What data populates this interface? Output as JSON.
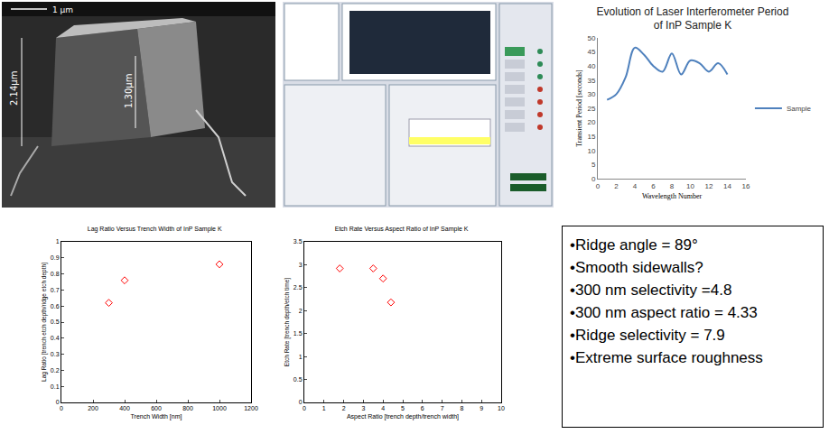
{
  "chart_data": [
    {
      "type": "line",
      "title": "Evolution of Laser Interferometer Period of InP Sample K",
      "x_label": "Wavelength Number",
      "y_label": "Transient Period [seconds]",
      "x": [
        1,
        2,
        3,
        4,
        5,
        6,
        7,
        8,
        9,
        10,
        11,
        12,
        13,
        14
      ],
      "series": [
        {
          "name": "Sample",
          "color": "#4f81bd",
          "values": [
            28,
            30,
            36,
            46.5,
            44,
            40,
            38,
            44.5,
            37,
            42,
            41,
            38,
            41,
            37
          ]
        }
      ],
      "xlim": [
        0,
        16
      ],
      "xticks": [
        0,
        2,
        4,
        6,
        8,
        10,
        12,
        14,
        16
      ],
      "ylim": [
        0,
        50
      ],
      "yticks": [
        0,
        5,
        10,
        15,
        20,
        25,
        30,
        35,
        40,
        45,
        50
      ],
      "grid": false,
      "legend": "right",
      "line_style": "smooth"
    },
    {
      "type": "scatter",
      "title": "Lag Ratio Versus Trench Width of InP Sample K",
      "x_label": "Trench Width [nm]",
      "y_label": "Lag Ratio [trench etch depth/ridge etch depth]",
      "x": [
        300,
        400,
        1000
      ],
      "values": [
        0.62,
        0.76,
        0.86
      ],
      "color": "#ff0000",
      "marker": "diamond-open",
      "xlim": [
        0,
        1200
      ],
      "xticks": [
        0,
        200,
        400,
        600,
        800,
        1000,
        1200
      ],
      "ylim": [
        0,
        1
      ],
      "yticks": [
        0,
        0.1,
        0.2,
        0.3,
        0.4,
        0.5,
        0.6,
        0.7,
        0.8,
        0.9,
        1
      ],
      "grid": false
    },
    {
      "type": "scatter",
      "title": "Etch Rate Versus Aspect Ratio of InP Sample K",
      "x_label": "Aspect Ratio [trench depth/trench width]",
      "y_label": "Etch Rate [trench depth/etch time]",
      "x": [
        1.8,
        3.5,
        4,
        4.4
      ],
      "values": [
        2.92,
        2.92,
        2.7,
        2.18
      ],
      "color": "#ff0000",
      "marker": "diamond-open",
      "xlim": [
        0,
        10
      ],
      "xticks": [
        0,
        1,
        2,
        3,
        4,
        5,
        6,
        7,
        8,
        9,
        10
      ],
      "ylim": [
        0,
        3.5
      ],
      "yticks": [
        0,
        0.5,
        1,
        1.5,
        2,
        2.5,
        3,
        3.5
      ],
      "grid": false
    }
  ],
  "sem_image": {
    "labels": [
      "2.14µm",
      "1.30µm",
      "1 µm"
    ]
  },
  "text_box": {
    "items": [
      "•Ridge angle = 89°",
      "•Smooth sidewalls?",
      "•300 nm selectivity =4.8",
      "•300 nm aspect ratio = 4.33",
      "•Ridge selectivity = 7.9",
      "•Extreme surface roughness"
    ]
  }
}
